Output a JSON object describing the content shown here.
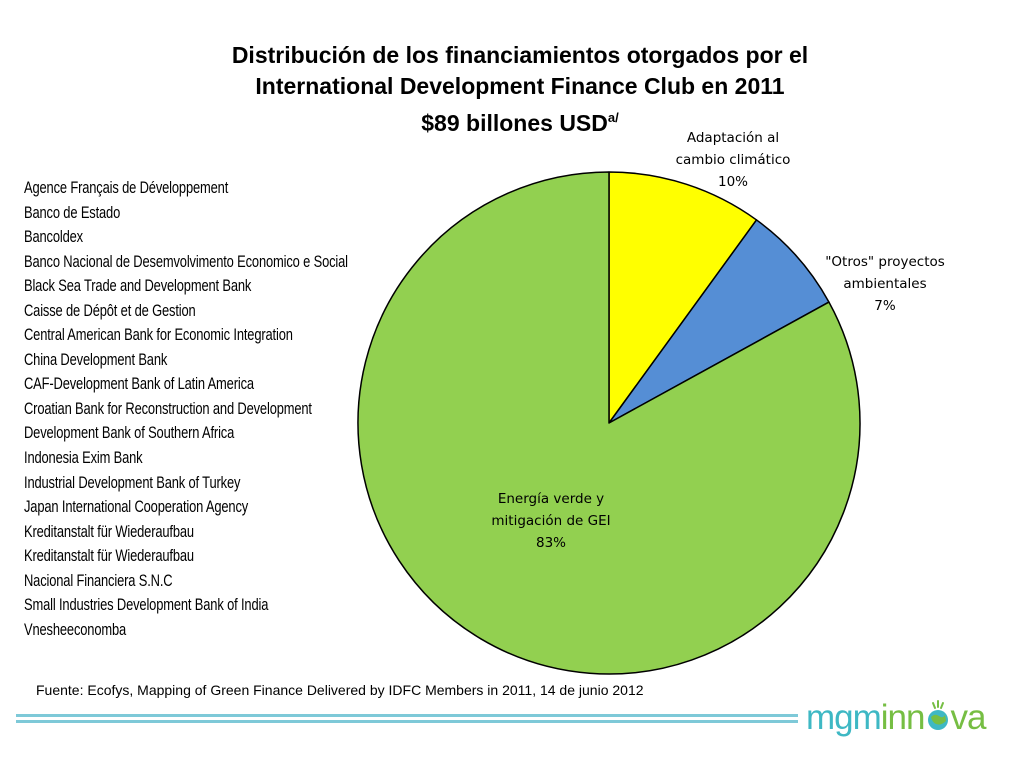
{
  "title": {
    "line1": "Distribución de los financiamientos otorgados por el",
    "line2": "International Development Finance Club en 2011",
    "line3": "$89 billones USD",
    "footnote_mark": "a/"
  },
  "members": [
    "Agence Français de Développement",
    "Banco de Estado",
    "Bancoldex",
    "Banco Nacional de Desemvolvimento Economico e Social",
    "Black Sea Trade and Development Bank",
    "Caisse de Dépôt et de Gestion",
    "Central American Bank for Economic Integration",
    "China Development Bank",
    "CAF-Development Bank of Latin America",
    "Croatian Bank for Reconstruction and Development",
    "Development Bank of Southern Africa",
    "Indonesia Exim Bank",
    "Industrial Development Bank of Turkey",
    "Japan International Cooperation Agency",
    "Kreditanstalt für Wiederaufbau",
    "Kreditanstalt für Wiederaufbau",
    "Nacional Financiera S.N.C",
    "Small Industries Development Bank of India",
    "Vnesheeconomba"
  ],
  "chart_data": {
    "type": "pie",
    "title": "Distribución de los financiamientos otorgados por el International Development Finance Club en 2011 $89 billones USD",
    "slices": [
      {
        "label_lines": [
          "Adaptación  al",
          "cambio climático",
          "10%"
        ],
        "value": 10,
        "color": "#ffff00"
      },
      {
        "label_lines": [
          "\"Otros\" proyectos",
          "ambientales",
          "7%"
        ],
        "value": 7,
        "color": "#558ed5"
      },
      {
        "label_lines": [
          "Energía verde y",
          "mitigación de GEI",
          "83%"
        ],
        "value": 83,
        "color": "#92d050"
      }
    ],
    "start_angle_deg": 0,
    "direction": "clockwise",
    "legend": "none"
  },
  "source": "Fuente: Ecofys, Mapping of Green Finance Delivered by IDFC Members in 2011, 14 de junio 2012",
  "logo": {
    "part1": "mgm",
    "part2": "inn",
    "part3": "va"
  },
  "colors": {
    "rule": "#7ec9d8",
    "logo_blue": "#3eb8c4",
    "logo_green": "#76be43"
  }
}
